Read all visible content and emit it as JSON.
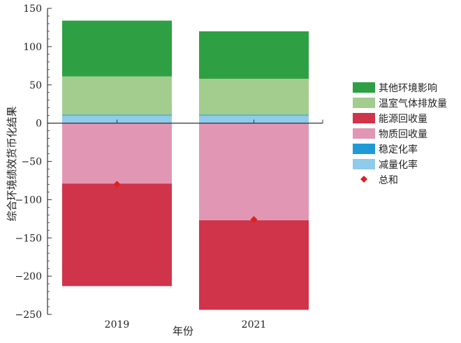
{
  "chart_data": {
    "type": "bar",
    "stacked": true,
    "xlabel": "年份",
    "ylabel": "综合环境绩效货币化结果",
    "ylim": [
      -250,
      150
    ],
    "yticks": [
      -250,
      -200,
      -150,
      -100,
      -50,
      0,
      50,
      100,
      150
    ],
    "ytick_labels": [
      "−250",
      "−200",
      "−150",
      "−100",
      "−50",
      "0",
      "50",
      "100",
      "150"
    ],
    "categories": [
      "2019",
      "2021"
    ],
    "series": [
      {
        "name": "其他环境影响",
        "color": "#2ea043",
        "values": [
          73,
          62
        ]
      },
      {
        "name": "温室气体排放量",
        "color": "#a3cd8e",
        "values": [
          50,
          47
        ]
      },
      {
        "name": "能源回收量",
        "color": "#d0344a",
        "values": [
          -134,
          -117
        ]
      },
      {
        "name": "物质回收量",
        "color": "#e197b4",
        "values": [
          -79,
          -127
        ]
      },
      {
        "name": "稳定化率",
        "color": "#1f9ad6",
        "values": [
          1,
          1
        ]
      },
      {
        "name": "减量化率",
        "color": "#8fcbea",
        "values": [
          10,
          10
        ]
      }
    ],
    "total": {
      "name": "总和",
      "color": "#e02020",
      "marker": "diamond",
      "values": [
        -80,
        -126
      ]
    },
    "legend_position": "right",
    "grid": false
  }
}
